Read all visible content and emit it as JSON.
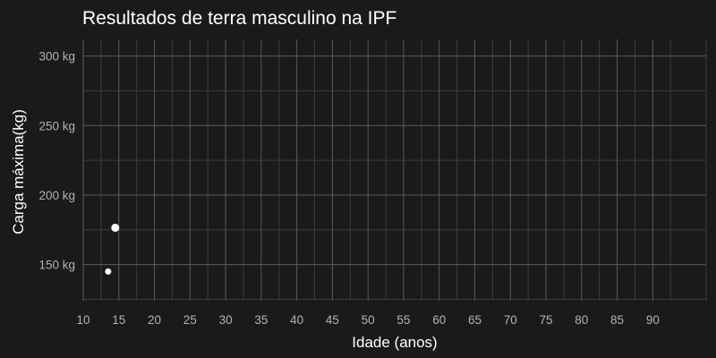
{
  "chart_data": {
    "type": "scatter",
    "title": "Resultados de terra masculino na IPF",
    "xlabel": "Idade (anos)",
    "ylabel": "Carga máxima(kg)",
    "xlim": [
      10,
      97.5
    ],
    "ylim": [
      124,
      312
    ],
    "x_ticks": [
      10,
      15,
      20,
      25,
      30,
      35,
      40,
      45,
      50,
      55,
      60,
      65,
      70,
      75,
      80,
      85,
      90
    ],
    "y_ticks": [
      150,
      200,
      250,
      300
    ],
    "y_tick_labels": [
      "150 kg",
      "200 kg",
      "250 kg",
      "300 kg"
    ],
    "grid": true,
    "points": [
      {
        "x": 13.5,
        "y": 145,
        "size": 3.5
      },
      {
        "x": 14.5,
        "y": 176.5,
        "size": 4.5
      }
    ],
    "colors": {
      "background": "#1a1a1a",
      "point": "#ffffff"
    }
  }
}
